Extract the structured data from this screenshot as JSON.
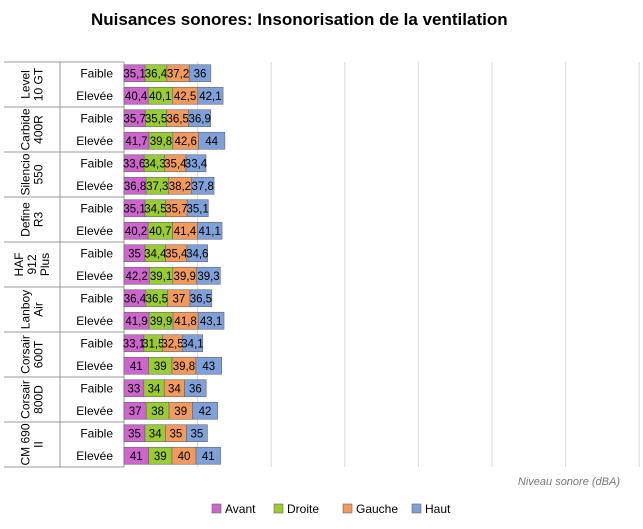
{
  "chart_data": {
    "type": "bar",
    "stacked": true,
    "orientation": "horizontal",
    "title": "Nuisances sonores: Insonorisation de la ventilation",
    "xlabel": "Niveau sonore (dBA)",
    "ylabel": "",
    "grid": true,
    "legend_position": "bottom",
    "groups": [
      {
        "name": "Level 10 GT",
        "lines": [
          "Level",
          "10 GT"
        ]
      },
      {
        "name": "Carbide 400R",
        "lines": [
          "Carbide",
          "400R"
        ]
      },
      {
        "name": "Silencio 550",
        "lines": [
          "Silencio",
          "550"
        ]
      },
      {
        "name": "Define R3",
        "lines": [
          "Define",
          "R3"
        ]
      },
      {
        "name": "HAF 912 Plus",
        "lines": [
          "HAF",
          "912",
          "Plus"
        ]
      },
      {
        "name": "Lanboy Air",
        "lines": [
          "Lanboy",
          "Air"
        ]
      },
      {
        "name": "Corsair 600T",
        "lines": [
          "Corsair",
          "600T"
        ]
      },
      {
        "name": "Corsair 800D",
        "lines": [
          "Corsair",
          "800D"
        ]
      },
      {
        "name": "CM 690 II",
        "lines": [
          "CM 690",
          "II"
        ]
      }
    ],
    "levels": [
      "Faible",
      "Elevée"
    ],
    "series": [
      {
        "name": "Avant",
        "color": "#CC66CC",
        "values": [
          35.1,
          40.4,
          35.7,
          41.7,
          33.6,
          36.8,
          35.1,
          40.2,
          35,
          42.2,
          36.4,
          41.9,
          33.1,
          41,
          33,
          37,
          35,
          41
        ],
        "labels": [
          "35,1",
          "40,4",
          "35,7",
          "41,7",
          "33,6",
          "36,8",
          "35,1",
          "40,2",
          "35",
          "42,2",
          "36,4",
          "41,9",
          "33,1",
          "41",
          "33",
          "37",
          "35",
          "41"
        ]
      },
      {
        "name": "Droite",
        "color": "#99CC33",
        "values": [
          36.4,
          40.1,
          35.5,
          39.8,
          34.3,
          37.3,
          34.5,
          40.7,
          34.4,
          39.1,
          36.5,
          39.9,
          31.5,
          39,
          34,
          38,
          34,
          39
        ],
        "labels": [
          "36,4",
          "40,1",
          "35,5",
          "39,8",
          "34,3",
          "37,3",
          "34,5",
          "40,7",
          "34,4",
          "39,1",
          "36,5",
          "39,9",
          "31,5",
          "39",
          "34",
          "38",
          "34",
          "39"
        ]
      },
      {
        "name": "Gauche",
        "color": "#F09A5E",
        "values": [
          37.2,
          42.5,
          36.5,
          42.6,
          35.4,
          38.2,
          35.7,
          41.4,
          35.4,
          39.9,
          37,
          41.8,
          32.5,
          39.8,
          34,
          39,
          35,
          40
        ],
        "labels": [
          "37,2",
          "42,5",
          "36,5",
          "42,6",
          "35,4",
          "38,2",
          "35,7",
          "41,4",
          "35,4",
          "39,9",
          "37",
          "41,8",
          "32,5",
          "39,8",
          "34",
          "39",
          "35",
          "40"
        ]
      },
      {
        "name": "Haut",
        "color": "#7FA0D8",
        "values": [
          36,
          42.1,
          36.9,
          44,
          33.4,
          37.8,
          35.1,
          41.1,
          34.6,
          39.3,
          36.5,
          43.1,
          34.1,
          43,
          36,
          42,
          35,
          41
        ],
        "labels": [
          "36",
          "42,1",
          "36,9",
          "44",
          "33,4",
          "37,8",
          "35,1",
          "41,1",
          "34,6",
          "39,3",
          "36,5",
          "43,1",
          "34,1",
          "43",
          "36",
          "42",
          "35",
          "41"
        ]
      }
    ]
  }
}
